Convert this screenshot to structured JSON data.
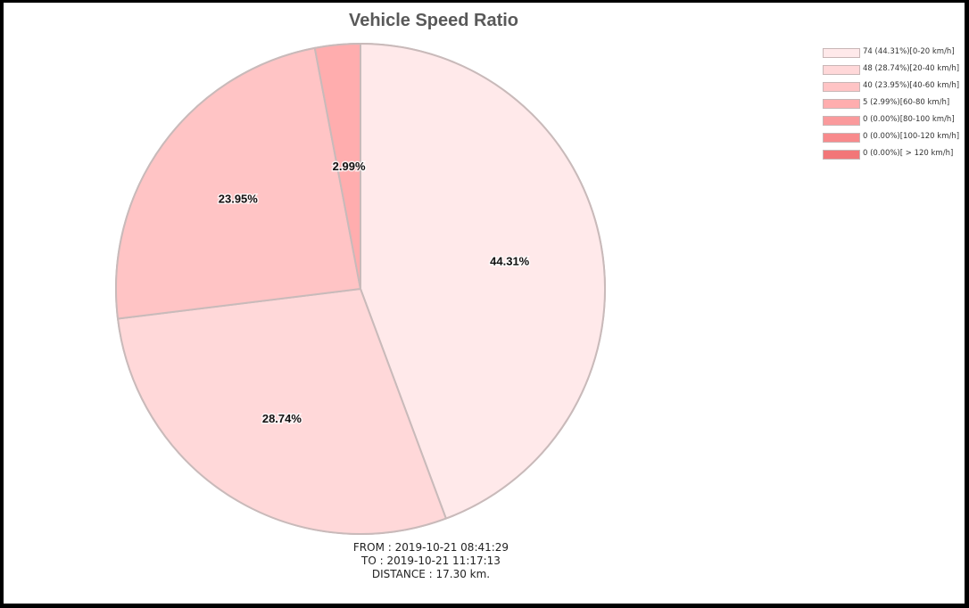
{
  "chart_data": {
    "type": "pie",
    "title": "Vehicle Speed Ratio",
    "slices": [
      {
        "label": "0-20 km/h",
        "value": 74,
        "percent": "44.31%",
        "legend": "74 (44.31%)[0-20 km/h]",
        "color": "#ffe9ea"
      },
      {
        "label": "20-40 km/h",
        "value": 48,
        "percent": "28.74%",
        "legend": "48 (28.74%)[20-40 km/h]",
        "color": "#ffd8d9"
      },
      {
        "label": "40-60 km/h",
        "value": 40,
        "percent": "23.95%",
        "legend": "40 (23.95%)[40-60 km/h]",
        "color": "#ffc4c5"
      },
      {
        "label": "60-80 km/h",
        "value": 5,
        "percent": "2.99%",
        "legend": "5 (2.99%)[60-80 km/h]",
        "color": "#ffadae"
      },
      {
        "label": "80-100 km/h",
        "value": 0,
        "percent": "0.00%",
        "legend": "0 (0.00%)[80-100 km/h]",
        "color": "#fa9a9c"
      },
      {
        "label": "100-120 km/h",
        "value": 0,
        "percent": "0.00%",
        "legend": "0 (0.00%)[100-120 km/h]",
        "color": "#f88a8c"
      },
      {
        "label": "> 120 km/h",
        "value": 0,
        "percent": "0.00%",
        "legend": "0 (0.00%)[ > 120 km/h]",
        "color": "#f27678"
      }
    ],
    "legend_position": "top-right",
    "slice_border_color": "#c9baba"
  },
  "footer": {
    "from": "FROM : 2019-10-21 08:41:29",
    "to": "TO : 2019-10-21 11:17:13",
    "distance": "DISTANCE : 17.30 km."
  }
}
